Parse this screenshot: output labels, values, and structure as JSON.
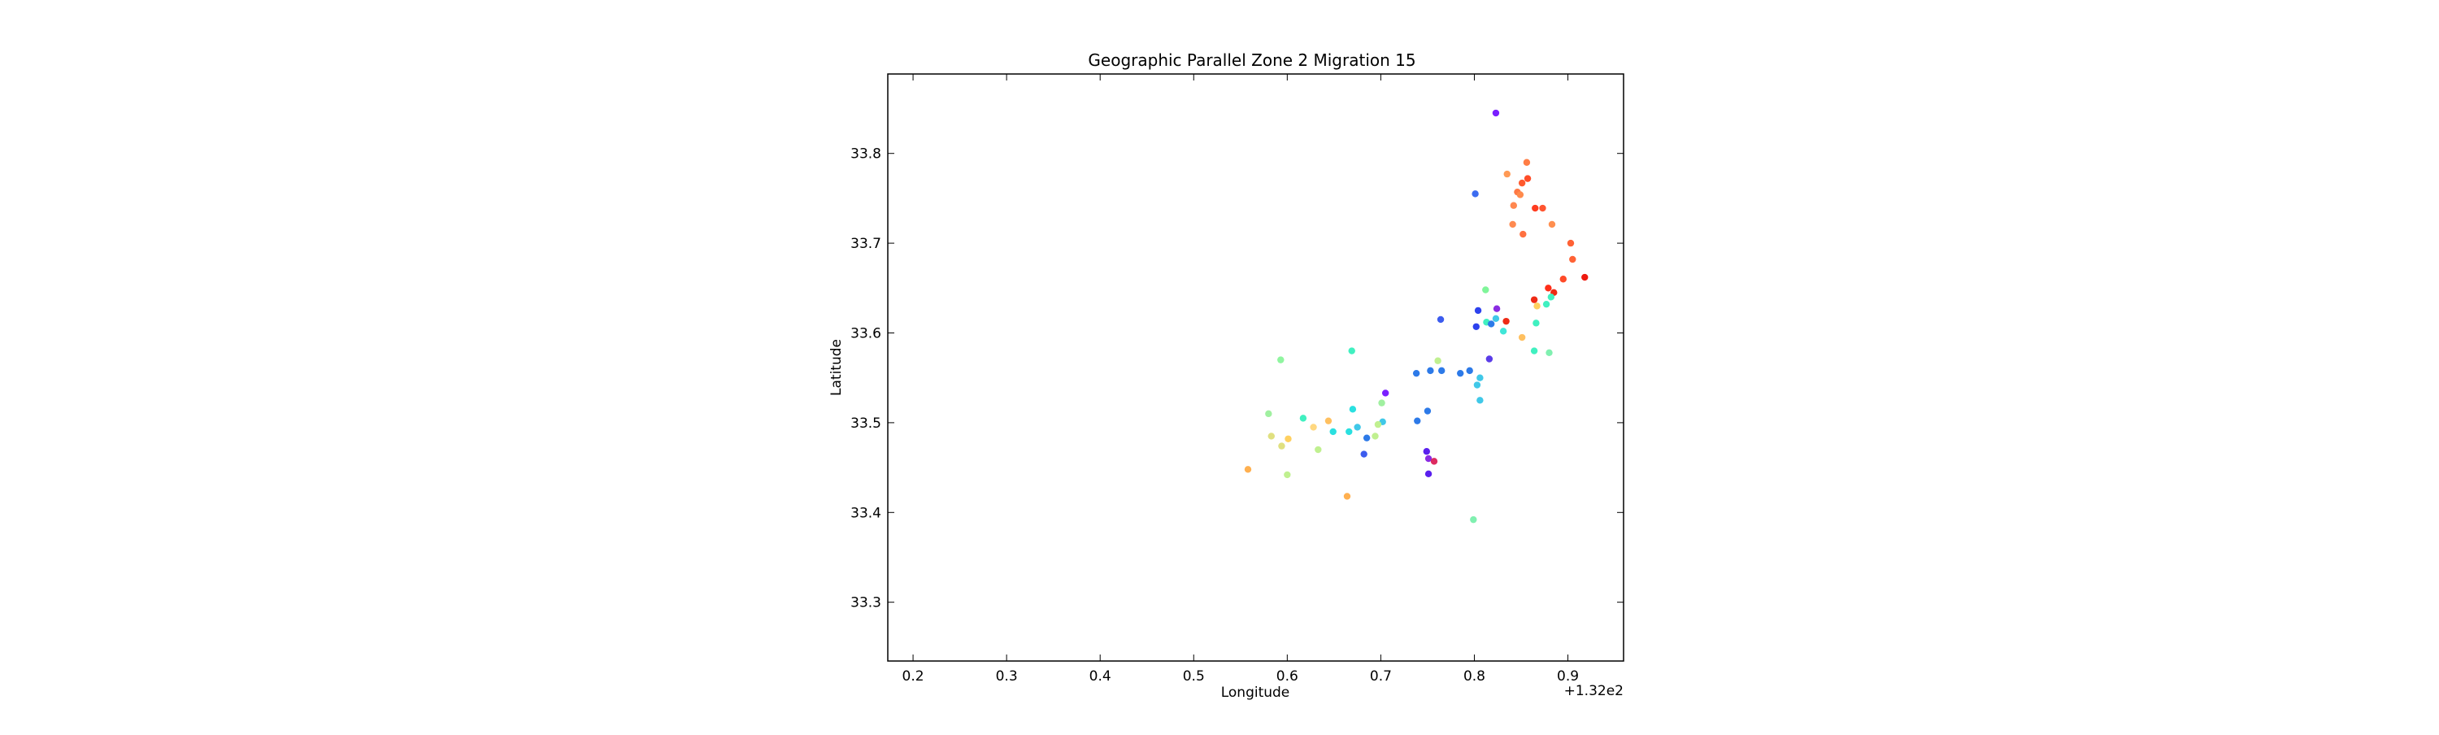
{
  "chart_data": {
    "type": "scatter",
    "title": "Geographic Parallel Zone 2 Migration 15",
    "xlabel": "Longitude",
    "ylabel": "Latitude",
    "x_offset_label": "+1.32e2",
    "xlim": [
      0.173,
      0.9595
    ],
    "ylim": [
      33.2345,
      33.8885
    ],
    "x_ticks": [
      0.2,
      0.3,
      0.4,
      0.5,
      0.6,
      0.7,
      0.8,
      0.9
    ],
    "y_ticks": [
      33.3,
      33.4,
      33.5,
      33.6,
      33.7,
      33.8
    ],
    "x_tick_labels": [
      "0.2",
      "0.3",
      "0.4",
      "0.5",
      "0.6",
      "0.7",
      "0.8",
      "0.9"
    ],
    "y_tick_labels": [
      "33.3",
      "33.4",
      "33.5",
      "33.6",
      "33.7",
      "33.8"
    ],
    "grid": false,
    "legend": "none",
    "points": [
      {
        "x": 0.823,
        "y": 33.845,
        "color": "#7a1fff"
      },
      {
        "x": 0.801,
        "y": 33.755,
        "color": "#3c6cf0"
      },
      {
        "x": 0.856,
        "y": 33.79,
        "color": "#ff7d45"
      },
      {
        "x": 0.835,
        "y": 33.777,
        "color": "#ff9a55"
      },
      {
        "x": 0.857,
        "y": 33.772,
        "color": "#ff4d28"
      },
      {
        "x": 0.851,
        "y": 33.767,
        "color": "#ff5a2e"
      },
      {
        "x": 0.846,
        "y": 33.757,
        "color": "#ff7844"
      },
      {
        "x": 0.849,
        "y": 33.754,
        "color": "#ff8a4c"
      },
      {
        "x": 0.842,
        "y": 33.742,
        "color": "#ff8850"
      },
      {
        "x": 0.865,
        "y": 33.739,
        "color": "#ff3c20"
      },
      {
        "x": 0.873,
        "y": 33.739,
        "color": "#ff5530"
      },
      {
        "x": 0.841,
        "y": 33.721,
        "color": "#ff8a50"
      },
      {
        "x": 0.883,
        "y": 33.721,
        "color": "#ff8f50"
      },
      {
        "x": 0.852,
        "y": 33.71,
        "color": "#ff7040"
      },
      {
        "x": 0.903,
        "y": 33.7,
        "color": "#ff6235"
      },
      {
        "x": 0.905,
        "y": 33.682,
        "color": "#ff6235"
      },
      {
        "x": 0.918,
        "y": 33.662,
        "color": "#ee1a10"
      },
      {
        "x": 0.895,
        "y": 33.66,
        "color": "#ff4a28"
      },
      {
        "x": 0.879,
        "y": 33.65,
        "color": "#ff2e18"
      },
      {
        "x": 0.812,
        "y": 33.648,
        "color": "#80f59a"
      },
      {
        "x": 0.885,
        "y": 33.645,
        "color": "#ee2a15"
      },
      {
        "x": 0.882,
        "y": 33.64,
        "color": "#40f0c0"
      },
      {
        "x": 0.864,
        "y": 33.637,
        "color": "#ee2a15"
      },
      {
        "x": 0.877,
        "y": 33.632,
        "color": "#40f0c0"
      },
      {
        "x": 0.867,
        "y": 33.63,
        "color": "#ffd060"
      },
      {
        "x": 0.824,
        "y": 33.627,
        "color": "#8a2be2"
      },
      {
        "x": 0.804,
        "y": 33.625,
        "color": "#2d42ee"
      },
      {
        "x": 0.764,
        "y": 33.615,
        "color": "#3c5cee"
      },
      {
        "x": 0.823,
        "y": 33.616,
        "color": "#40c8e8"
      },
      {
        "x": 0.834,
        "y": 33.613,
        "color": "#ee2a15"
      },
      {
        "x": 0.813,
        "y": 33.612,
        "color": "#40f0c0"
      },
      {
        "x": 0.866,
        "y": 33.611,
        "color": "#40f0c0"
      },
      {
        "x": 0.818,
        "y": 33.61,
        "color": "#2d7ae8"
      },
      {
        "x": 0.802,
        "y": 33.607,
        "color": "#2d42ee"
      },
      {
        "x": 0.831,
        "y": 33.602,
        "color": "#40e6d8"
      },
      {
        "x": 0.851,
        "y": 33.595,
        "color": "#ffc060"
      },
      {
        "x": 0.669,
        "y": 33.58,
        "color": "#40f0c0"
      },
      {
        "x": 0.864,
        "y": 33.58,
        "color": "#40f0c0"
      },
      {
        "x": 0.88,
        "y": 33.578,
        "color": "#80f0b0"
      },
      {
        "x": 0.816,
        "y": 33.571,
        "color": "#5a3ce8"
      },
      {
        "x": 0.593,
        "y": 33.57,
        "color": "#90f5a0"
      },
      {
        "x": 0.761,
        "y": 33.569,
        "color": "#c0f090"
      },
      {
        "x": 0.753,
        "y": 33.558,
        "color": "#2d7ae8"
      },
      {
        "x": 0.765,
        "y": 33.558,
        "color": "#2d7ae8"
      },
      {
        "x": 0.795,
        "y": 33.558,
        "color": "#2d7ae8"
      },
      {
        "x": 0.785,
        "y": 33.555,
        "color": "#2d7ae8"
      },
      {
        "x": 0.738,
        "y": 33.555,
        "color": "#2d7ae8"
      },
      {
        "x": 0.806,
        "y": 33.55,
        "color": "#40c8e8"
      },
      {
        "x": 0.803,
        "y": 33.542,
        "color": "#40c8e8"
      },
      {
        "x": 0.705,
        "y": 33.533,
        "color": "#7a1fff"
      },
      {
        "x": 0.806,
        "y": 33.525,
        "color": "#40c8e8"
      },
      {
        "x": 0.701,
        "y": 33.522,
        "color": "#a0f0a0"
      },
      {
        "x": 0.67,
        "y": 33.515,
        "color": "#2ae0e0"
      },
      {
        "x": 0.75,
        "y": 33.513,
        "color": "#2d7ae8"
      },
      {
        "x": 0.58,
        "y": 33.51,
        "color": "#a0f0a0"
      },
      {
        "x": 0.617,
        "y": 33.505,
        "color": "#40f0c0"
      },
      {
        "x": 0.739,
        "y": 33.502,
        "color": "#2d7ae8"
      },
      {
        "x": 0.644,
        "y": 33.502,
        "color": "#ffc060"
      },
      {
        "x": 0.702,
        "y": 33.501,
        "color": "#40c8e8"
      },
      {
        "x": 0.697,
        "y": 33.498,
        "color": "#c0f090"
      },
      {
        "x": 0.628,
        "y": 33.495,
        "color": "#ffd880"
      },
      {
        "x": 0.675,
        "y": 33.495,
        "color": "#40c8e8"
      },
      {
        "x": 0.649,
        "y": 33.49,
        "color": "#2ae0e0"
      },
      {
        "x": 0.666,
        "y": 33.49,
        "color": "#2ae0e0"
      },
      {
        "x": 0.583,
        "y": 33.485,
        "color": "#e0e080"
      },
      {
        "x": 0.694,
        "y": 33.485,
        "color": "#c0f090"
      },
      {
        "x": 0.685,
        "y": 33.483,
        "color": "#2d7ae8"
      },
      {
        "x": 0.601,
        "y": 33.482,
        "color": "#ffd060"
      },
      {
        "x": 0.594,
        "y": 33.474,
        "color": "#e0e080"
      },
      {
        "x": 0.633,
        "y": 33.47,
        "color": "#c0f090"
      },
      {
        "x": 0.749,
        "y": 33.468,
        "color": "#5a20ee"
      },
      {
        "x": 0.682,
        "y": 33.465,
        "color": "#3c5cee"
      },
      {
        "x": 0.751,
        "y": 33.46,
        "color": "#8a2be2"
      },
      {
        "x": 0.757,
        "y": 33.457,
        "color": "#dd2a60"
      },
      {
        "x": 0.558,
        "y": 33.448,
        "color": "#ffb050"
      },
      {
        "x": 0.751,
        "y": 33.443,
        "color": "#5a20ee"
      },
      {
        "x": 0.6,
        "y": 33.442,
        "color": "#c0f090"
      },
      {
        "x": 0.664,
        "y": 33.418,
        "color": "#ffb050"
      },
      {
        "x": 0.799,
        "y": 33.392,
        "color": "#80f0b0"
      }
    ]
  }
}
